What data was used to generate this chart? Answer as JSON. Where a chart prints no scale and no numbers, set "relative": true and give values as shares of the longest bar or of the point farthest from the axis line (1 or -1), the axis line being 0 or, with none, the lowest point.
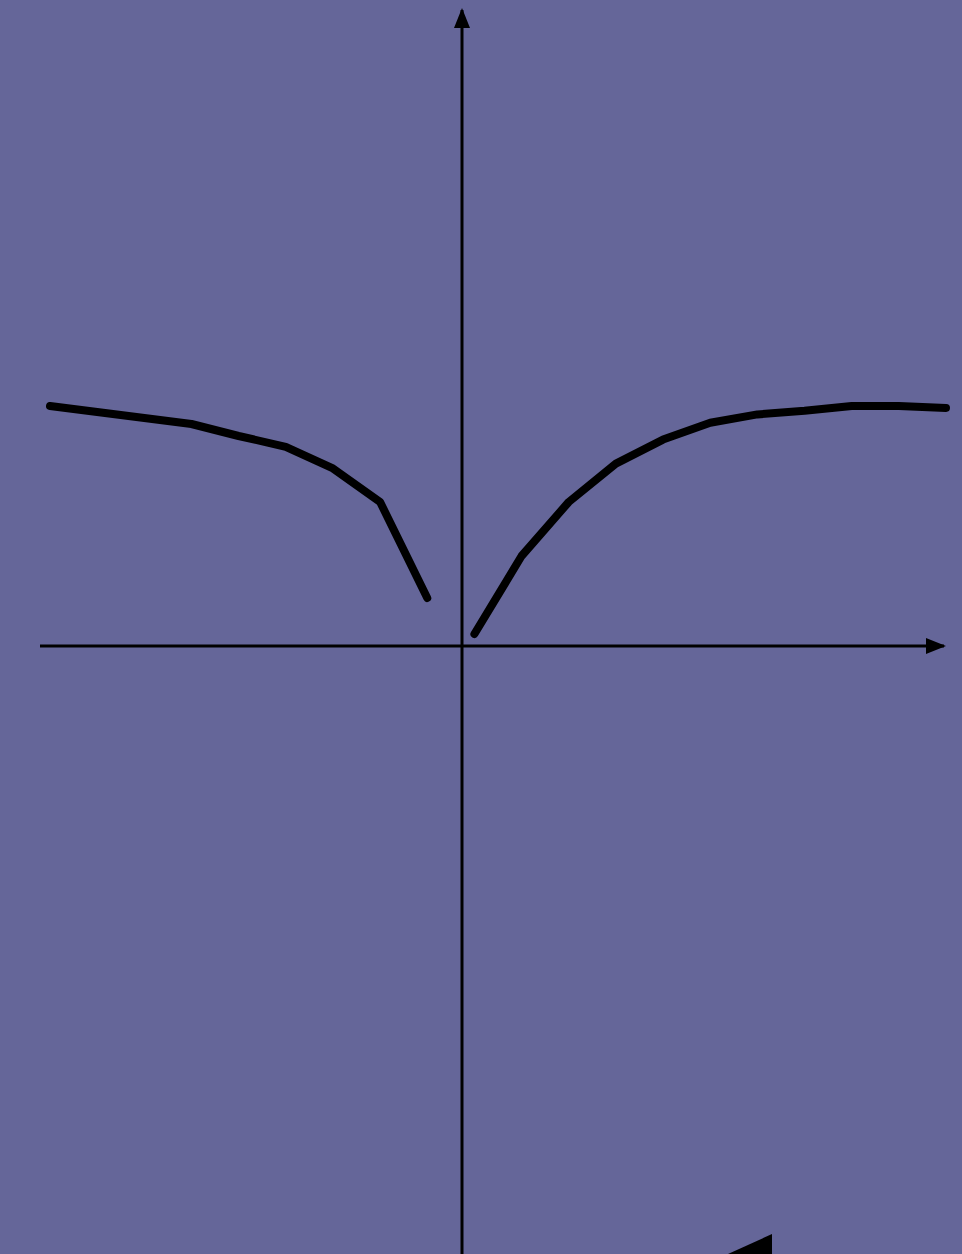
{
  "chart_data": {
    "type": "line",
    "relative": true,
    "marker": "none",
    "line_style": "solid",
    "categories": [
      null,
      null,
      null,
      null,
      null,
      null,
      null,
      null,
      null,
      null,
      null,
      null,
      null,
      null,
      null,
      null,
      null,
      null,
      null,
      null
    ],
    "series": [
      {
        "color": "#000000",
        "values": [
          1.0,
          0.975,
          0.95,
          0.925,
          0.875,
          0.83,
          0.74,
          0.6,
          0.2,
          null,
          null,
          null,
          null,
          null,
          null,
          null,
          null,
          null,
          null,
          null
        ]
      },
      {
        "color": "#000000",
        "values": [
          null,
          null,
          null,
          null,
          null,
          null,
          null,
          null,
          null,
          0.05,
          0.375,
          0.6,
          0.76,
          0.86,
          0.93,
          0.965,
          0.98,
          1.0,
          1.0,
          0.992
        ]
      }
    ]
  }
}
